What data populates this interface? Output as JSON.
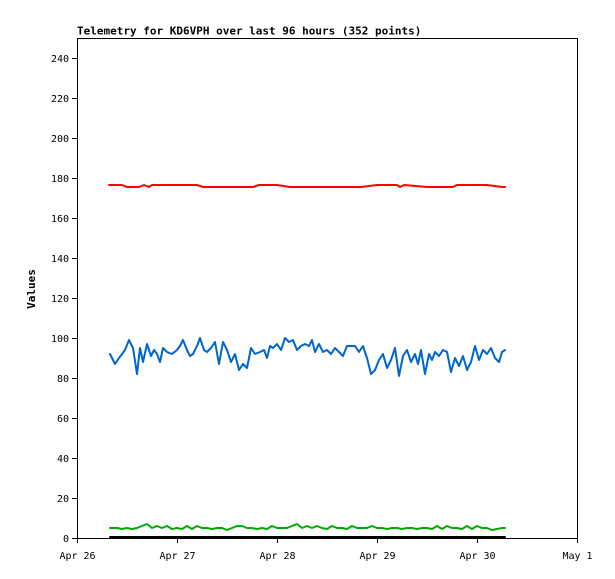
{
  "chart_data": {
    "type": "line",
    "title": "Telemetry for KD6VPH over last 96 hours (352 points)",
    "xlabel": "",
    "ylabel": "Values",
    "xlim": [
      "Apr 26",
      "May 1"
    ],
    "ylim": [
      0,
      250
    ],
    "x_ticks": [
      "Apr 26",
      "Apr 27",
      "Apr 28",
      "Apr 29",
      "Apr 30",
      "May 1"
    ],
    "y_ticks": [
      0,
      20,
      40,
      60,
      80,
      100,
      120,
      140,
      160,
      180,
      200,
      220,
      240
    ],
    "grid": false,
    "legend": "none",
    "x_unit": "days",
    "series": [
      {
        "color": "#ff0000",
        "x": [
          26.32,
          26.45,
          26.5,
          26.62,
          26.67,
          26.72,
          26.75,
          27.0,
          27.2,
          27.26,
          27.5,
          27.76,
          27.82,
          28.0,
          28.13,
          28.5,
          28.84,
          29.0,
          29.2,
          29.23,
          29.27,
          29.5,
          29.76,
          29.8,
          30.0,
          30.1,
          30.25,
          30.28
        ],
        "values": [
          176.5,
          176.5,
          175.5,
          175.5,
          176.5,
          175.5,
          176.5,
          176.5,
          176.5,
          175.5,
          175.5,
          175.5,
          176.5,
          176.5,
          175.5,
          175.5,
          175.5,
          176.5,
          176.5,
          175.5,
          176.5,
          175.5,
          175.5,
          176.5,
          176.5,
          176.5,
          175.5,
          175.5
        ]
      },
      {
        "color": "#0066cc",
        "x": [
          26.33,
          26.38,
          26.42,
          26.48,
          26.52,
          26.56,
          26.6,
          26.63,
          26.66,
          26.7,
          26.74,
          26.77,
          26.8,
          26.83,
          26.86,
          26.9,
          26.95,
          27.0,
          27.03,
          27.06,
          27.1,
          27.13,
          27.16,
          27.2,
          27.23,
          27.27,
          27.3,
          27.34,
          27.38,
          27.42,
          27.46,
          27.5,
          27.54,
          27.58,
          27.62,
          27.66,
          27.7,
          27.74,
          27.78,
          27.83,
          27.87,
          27.9,
          27.93,
          27.96,
          28.0,
          28.04,
          28.08,
          28.12,
          28.16,
          28.2,
          28.24,
          28.28,
          28.32,
          28.35,
          28.38,
          28.42,
          28.46,
          28.5,
          28.54,
          28.58,
          28.62,
          28.66,
          28.7,
          28.74,
          28.78,
          28.82,
          28.86,
          28.9,
          28.94,
          28.98,
          29.02,
          29.06,
          29.1,
          29.14,
          29.18,
          29.22,
          29.26,
          29.3,
          29.34,
          29.38,
          29.41,
          29.44,
          29.48,
          29.52,
          29.55,
          29.58,
          29.62,
          29.66,
          29.7,
          29.74,
          29.78,
          29.82,
          29.86,
          29.9,
          29.94,
          29.98,
          30.02,
          30.06,
          30.1,
          30.14,
          30.18,
          30.22,
          30.25,
          30.28
        ],
        "values": [
          92,
          87,
          90,
          94,
          99,
          95,
          82,
          95,
          88,
          97,
          91,
          94,
          92,
          88,
          95,
          93,
          92,
          94,
          96,
          99,
          94,
          91,
          92,
          96,
          100,
          94,
          93,
          95,
          98,
          87,
          98,
          94,
          88,
          92,
          84,
          87,
          85,
          95,
          92,
          93,
          94,
          90,
          96,
          95,
          97,
          94,
          100,
          98,
          99,
          94,
          96,
          97,
          96,
          99,
          93,
          97,
          93,
          94,
          92,
          95,
          93,
          91,
          96,
          96,
          96,
          93,
          96,
          90,
          82,
          84,
          89,
          92,
          85,
          89,
          95,
          81,
          91,
          94,
          88,
          92,
          87,
          94,
          82,
          92,
          89,
          93,
          91,
          94,
          93,
          83,
          90,
          86,
          91,
          84,
          88,
          96,
          89,
          94,
          92,
          95,
          90,
          88,
          93,
          94
        ]
      },
      {
        "color": "#00aa00",
        "x": [
          26.33,
          26.4,
          26.45,
          26.5,
          26.55,
          26.6,
          26.65,
          26.7,
          26.75,
          26.8,
          26.85,
          26.9,
          26.95,
          27.0,
          27.05,
          27.1,
          27.15,
          27.2,
          27.25,
          27.3,
          27.35,
          27.4,
          27.45,
          27.5,
          27.55,
          27.6,
          27.65,
          27.7,
          27.75,
          27.8,
          27.85,
          27.9,
          27.95,
          28.0,
          28.05,
          28.1,
          28.15,
          28.2,
          28.25,
          28.3,
          28.35,
          28.4,
          28.45,
          28.5,
          28.55,
          28.6,
          28.65,
          28.7,
          28.75,
          28.8,
          28.85,
          28.9,
          28.95,
          29.0,
          29.05,
          29.1,
          29.15,
          29.2,
          29.25,
          29.3,
          29.35,
          29.4,
          29.45,
          29.5,
          29.55,
          29.6,
          29.65,
          29.7,
          29.75,
          29.8,
          29.85,
          29.9,
          29.95,
          30.0,
          30.05,
          30.1,
          30.15,
          30.2,
          30.25,
          30.28
        ],
        "values": [
          5,
          5,
          4.5,
          5,
          4.5,
          5,
          6,
          7,
          5,
          6,
          5,
          6,
          4.5,
          5,
          4.5,
          6,
          4.5,
          6,
          5,
          5,
          4.5,
          5,
          5,
          4,
          5,
          6,
          6,
          5,
          5,
          4.5,
          5,
          4.5,
          6,
          5,
          5,
          5,
          6,
          7,
          5,
          6,
          5,
          6,
          5,
          4.5,
          6,
          5,
          5,
          4.5,
          6,
          5,
          5,
          5,
          6,
          5,
          5,
          4.5,
          5,
          5,
          4.5,
          5,
          5,
          4.5,
          5,
          5,
          4.5,
          6,
          4.5,
          6,
          5,
          5,
          4.5,
          6,
          4.5,
          6,
          5,
          5,
          4,
          4.5,
          5,
          5
        ]
      },
      {
        "color": "#000000",
        "x": [
          26.33,
          30.28
        ],
        "values": [
          0.5,
          0.5
        ]
      }
    ]
  }
}
